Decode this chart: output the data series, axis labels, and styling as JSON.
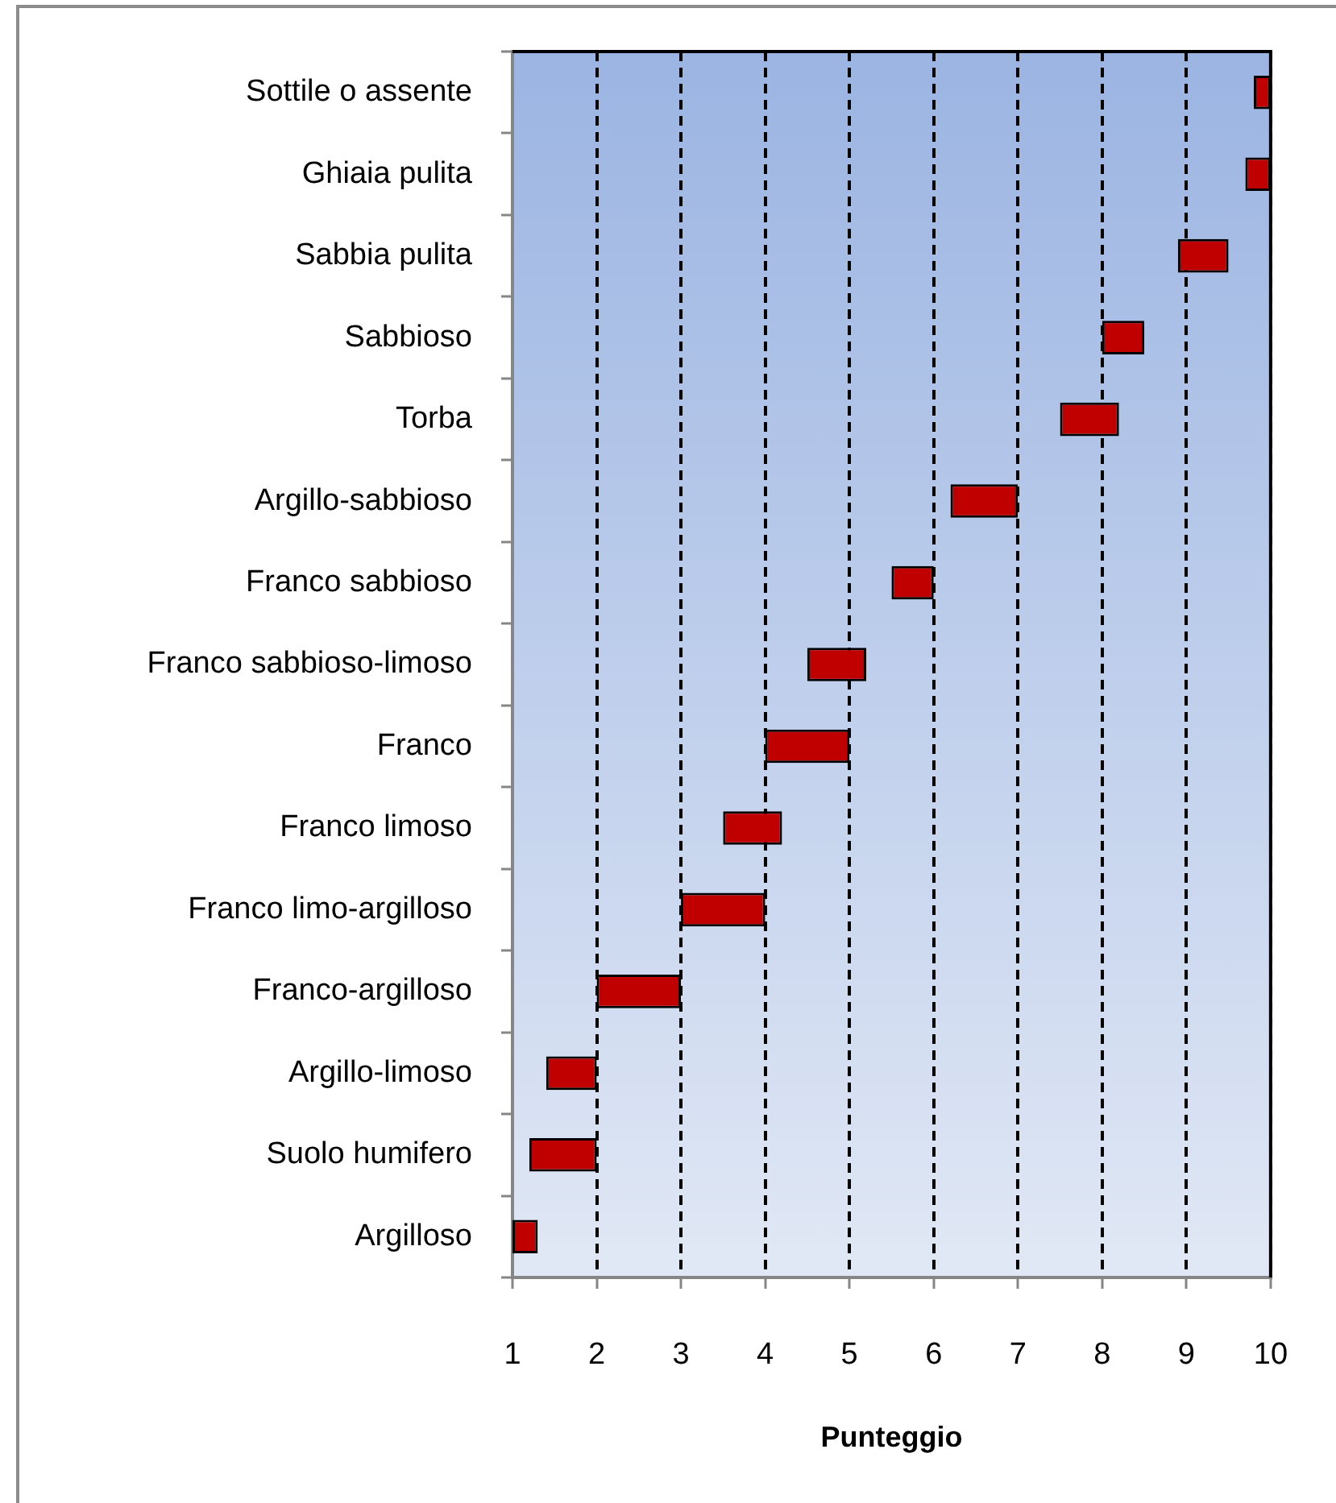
{
  "chart_data": {
    "type": "bar",
    "orientation": "horizontal",
    "categories": [
      "Sottile o assente",
      "Ghiaia pulita",
      "Sabbia pulita",
      "Sabbioso",
      "Torba",
      "Argillo-sabbioso",
      "Franco sabbioso",
      "Franco sabbioso-limoso",
      "Franco",
      "Franco limoso",
      "Franco limo-argilloso",
      "Franco-argilloso",
      "Argillo-limoso",
      "Suolo humifero",
      "Argilloso"
    ],
    "base": [
      9.8,
      9.7,
      8.9,
      8,
      7.5,
      6.2,
      5.5,
      4.5,
      4,
      3.5,
      3,
      2,
      1.4,
      1.2,
      1
    ],
    "values": [
      0.2,
      0.3,
      0.6,
      0.5,
      0.7,
      0.8,
      0.5,
      0.7,
      1,
      0.7,
      1,
      1,
      0.6,
      0.8,
      0.3
    ],
    "color": "#c00000",
    "xlim": [
      1,
      10
    ],
    "xticks": [
      1,
      2,
      3,
      4,
      5,
      6,
      7,
      8,
      9,
      10
    ],
    "xlabel": "Punteggio",
    "grid": "x"
  }
}
